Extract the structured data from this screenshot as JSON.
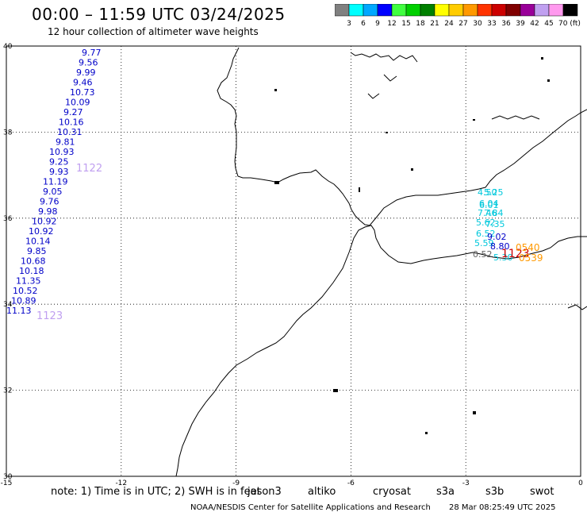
{
  "title": "00:00 – 11:59 UTC 03/24/2025",
  "subtitle": "12 hour collection of altimeter wave heights",
  "legend": {
    "ticks": [
      "3",
      "6",
      "9",
      "12",
      "15",
      "18",
      "21",
      "24",
      "27",
      "30",
      "33",
      "36",
      "39",
      "42",
      "45",
      "70 (ft)"
    ],
    "colors": [
      "#808080",
      "#00ffff",
      "#00a8ff",
      "#0000ff",
      "#40ff40",
      "#00d000",
      "#008000",
      "#ffff00",
      "#ffcc00",
      "#ff9900",
      "#ff3300",
      "#cc0000",
      "#800000",
      "#990099",
      "#c0a0f0",
      "#ff99ee",
      "#000000"
    ]
  },
  "map": {
    "lat_labels": [
      "40",
      "38",
      "36",
      "34",
      "32",
      "30"
    ],
    "lon_labels": [
      "-15",
      "-12",
      "-9",
      "-6",
      "-3",
      "0"
    ],
    "lat_range": [
      30,
      40
    ],
    "lon_range": [
      -15,
      0
    ]
  },
  "tracks": {
    "jason3_west": {
      "color": "#0000c8",
      "pass_label": "1123",
      "pass_color": "#c0a0f0",
      "values": [
        "9.77",
        "9.56",
        "9.99",
        "9.46",
        "10.73",
        "10.09",
        "9.27",
        "10.16",
        "10.31",
        "9.81",
        "10.93",
        "9.25",
        "9.93",
        "11.19",
        "9.05",
        "9.76",
        "9.98",
        "10.92",
        "10.92",
        "10.14",
        "9.85",
        "10.68",
        "10.18",
        "11.35",
        "10.52",
        "10.89",
        "11.13"
      ]
    },
    "s3b_label": {
      "text": "1122",
      "color": "#c0a0f0"
    },
    "med_cyan": {
      "color": "#00c8dc",
      "values": [
        "4.50",
        "5.25",
        "6.04",
        "6.01",
        "7.46",
        "7.84",
        "5.62",
        "7.35",
        "6.52",
        "5.59",
        "5.30"
      ]
    },
    "med_blue": {
      "color": "#0000c8",
      "values": [
        "9.02",
        "8.80"
      ]
    },
    "med_gray": {
      "color": "#606060",
      "values": [
        "0.52"
      ]
    },
    "med_red": {
      "color": "#cc0000",
      "text": "1123"
    },
    "med_orange": {
      "color": "#ff9900",
      "values": [
        "0540",
        "0539"
      ]
    }
  },
  "footer": {
    "note": "note:  1) Time is in UTC; 2) SWH is in feet",
    "satellites": [
      {
        "name": "jason3",
        "color": "#008000"
      },
      {
        "name": "altiko",
        "color": "#ff9900"
      },
      {
        "name": "cryosat",
        "color": "#ff0000"
      },
      {
        "name": "s3a",
        "color": "#800000"
      },
      {
        "name": "s3b",
        "color": "#c0a0f0"
      },
      {
        "name": "swot",
        "color": "#ff99ee"
      }
    ],
    "credit": "NOAA/NESDIS Center for Satellite Applications and Research",
    "timestamp": "28 Mar 08:25:49 UTC 2025"
  }
}
